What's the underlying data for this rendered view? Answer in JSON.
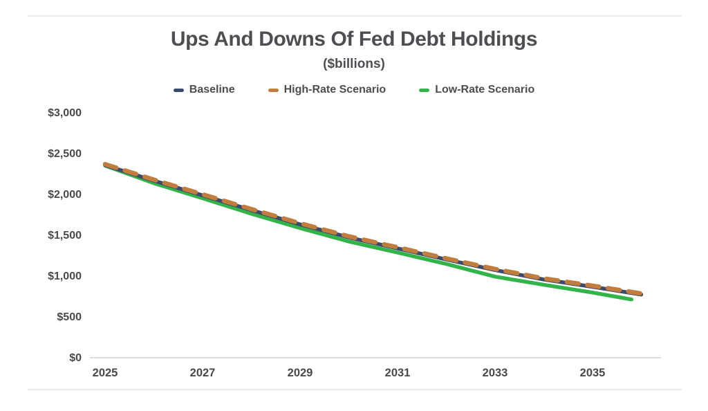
{
  "page": {
    "title": "Ups And Downs Of Fed Debt Holdings",
    "subtitle": "($billions)"
  },
  "chart_data": {
    "type": "line",
    "title": "Ups And Downs Of Fed Debt Holdings",
    "subtitle": "($billions)",
    "unit": "$billions",
    "legend_position": "top",
    "grid": false,
    "xlim": [
      2025,
      2036.5
    ],
    "ylim": [
      0,
      3000
    ],
    "x_ticks": [
      {
        "label": "2025",
        "year": 2025
      },
      {
        "label": "2027",
        "year": 2027
      },
      {
        "label": "2029",
        "year": 2029
      },
      {
        "label": "2031",
        "year": 2031
      },
      {
        "label": "2033",
        "year": 2033
      },
      {
        "label": "2035",
        "year": 2035
      }
    ],
    "y_ticks": [
      {
        "label": "$0",
        "value": 0
      },
      {
        "label": "$500",
        "value": 500
      },
      {
        "label": "$1,000",
        "value": 1000
      },
      {
        "label": "$1,500",
        "value": 1500
      },
      {
        "label": "$2,000",
        "value": 2000
      },
      {
        "label": "$2,500",
        "value": 2500
      },
      {
        "label": "$3,000",
        "value": 3000
      }
    ],
    "series": [
      {
        "name": "Baseline",
        "color": "#3b4a6b",
        "line_style": "solid",
        "x": [
          2025,
          2026,
          2027,
          2028,
          2029,
          2030,
          2031,
          2032,
          2033,
          2034,
          2035,
          2036
        ],
        "values": [
          2350,
          2160,
          1980,
          1800,
          1625,
          1465,
          1330,
          1195,
          1065,
          950,
          860,
          765
        ]
      },
      {
        "name": "High-Rate Scenario",
        "color": "#c07d3e",
        "line_style": "dashed",
        "x": [
          2025,
          2026,
          2027,
          2028,
          2029,
          2030,
          2031,
          2032,
          2033,
          2034,
          2035,
          2036
        ],
        "values": [
          2362,
          2172,
          1992,
          1812,
          1638,
          1478,
          1343,
          1208,
          1078,
          963,
          873,
          778
        ]
      },
      {
        "name": "Low-Rate Scenario",
        "color": "#33b449",
        "line_style": "solid",
        "x": [
          2025,
          2026,
          2027,
          2028,
          2029,
          2030,
          2031,
          2032,
          2033,
          2034,
          2035,
          2035.8
        ],
        "values": [
          2345,
          2130,
          1945,
          1755,
          1580,
          1415,
          1280,
          1140,
          985,
          885,
          790,
          705
        ]
      }
    ]
  }
}
